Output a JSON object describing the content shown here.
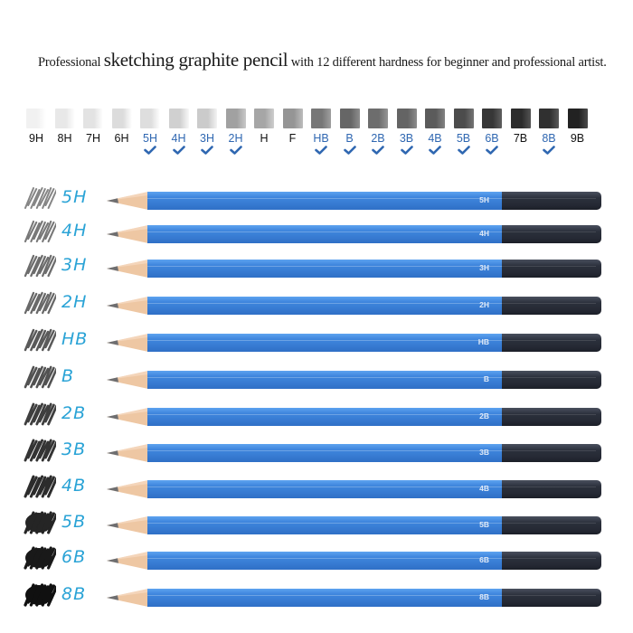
{
  "headline": {
    "prefix": "Professional ",
    "emphasis": "sketching graphite pencil",
    "suffix": " with 12 different hardness for beginner and professional artist."
  },
  "colors": {
    "check_blue": "#2f67b1",
    "handwriting_blue": "#2aa3d6",
    "pencil_body_blue": "#3a7fd6",
    "pencil_cap_black": "#262a35",
    "wood": "#eec7a3",
    "graphite": "#6e6e70"
  },
  "hardness_scale": [
    {
      "label": "9H",
      "included": false,
      "shade": 0.06
    },
    {
      "label": "8H",
      "included": false,
      "shade": 0.1
    },
    {
      "label": "7H",
      "included": false,
      "shade": 0.12
    },
    {
      "label": "6H",
      "included": false,
      "shade": 0.15
    },
    {
      "label": "5H",
      "included": true,
      "shade": 0.14
    },
    {
      "label": "4H",
      "included": true,
      "shade": 0.2
    },
    {
      "label": "3H",
      "included": true,
      "shade": 0.22
    },
    {
      "label": "2H",
      "included": true,
      "shade": 0.4
    },
    {
      "label": "H",
      "included": false,
      "shade": 0.38
    },
    {
      "label": "F",
      "included": false,
      "shade": 0.45
    },
    {
      "label": "HB",
      "included": true,
      "shade": 0.58
    },
    {
      "label": "B",
      "included": true,
      "shade": 0.65
    },
    {
      "label": "2B",
      "included": true,
      "shade": 0.62
    },
    {
      "label": "3B",
      "included": true,
      "shade": 0.66
    },
    {
      "label": "4B",
      "included": true,
      "shade": 0.7
    },
    {
      "label": "5B",
      "included": true,
      "shade": 0.76
    },
    {
      "label": "6B",
      "included": true,
      "shade": 0.85
    },
    {
      "label": "7B",
      "included": false,
      "shade": 0.9
    },
    {
      "label": "8B",
      "included": true,
      "shade": 0.88
    },
    {
      "label": "9B",
      "included": false,
      "shade": 0.94
    }
  ],
  "pencils": [
    {
      "grade": "5H",
      "handwritten": "5H",
      "shade": 0.35
    },
    {
      "grade": "4H",
      "handwritten": "4H",
      "shade": 0.42
    },
    {
      "grade": "3H",
      "handwritten": "3H",
      "shade": 0.48
    },
    {
      "grade": "2H",
      "handwritten": "2H",
      "shade": 0.5
    },
    {
      "grade": "HB",
      "handwritten": "HB",
      "shade": 0.58
    },
    {
      "grade": "B",
      "handwritten": "B",
      "shade": 0.62
    },
    {
      "grade": "2B",
      "handwritten": "2B",
      "shade": 0.72
    },
    {
      "grade": "3B",
      "handwritten": "3B",
      "shade": 0.78
    },
    {
      "grade": "4B",
      "handwritten": "4B",
      "shade": 0.82
    },
    {
      "grade": "5B",
      "handwritten": "5B",
      "shade": 0.86
    },
    {
      "grade": "6B",
      "handwritten": "6B",
      "shade": 0.92
    },
    {
      "grade": "8B",
      "handwritten": "8B",
      "shade": 0.97
    }
  ]
}
